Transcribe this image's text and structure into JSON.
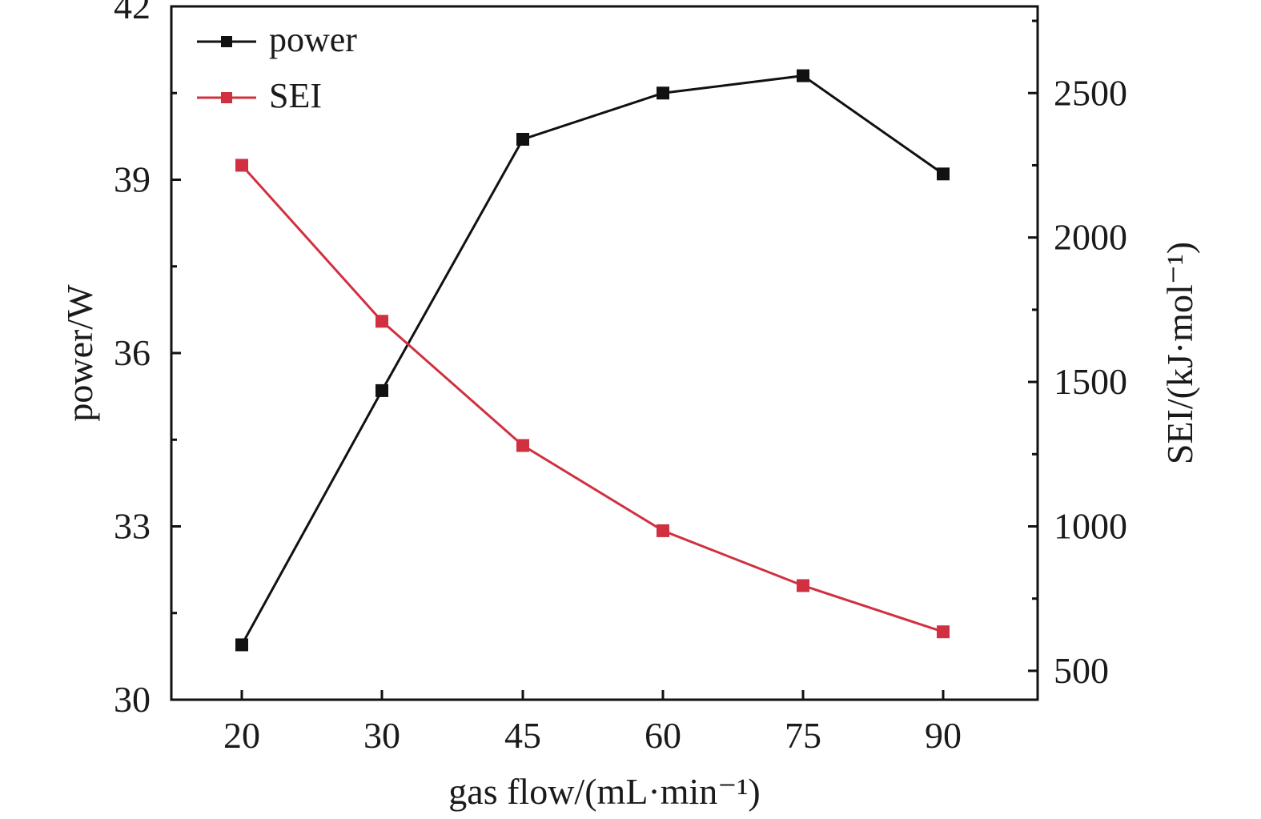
{
  "chart_data": {
    "type": "line",
    "categories": [
      "20",
      "30",
      "45",
      "60",
      "75",
      "90"
    ],
    "xlabel": "gas flow/(mL·min⁻¹)",
    "ylabel": "power/W",
    "y2label": "SEI/(kJ·mol⁻¹)",
    "ylim": [
      30,
      42
    ],
    "y_ticks": [
      "30",
      "33",
      "36",
      "39",
      "42"
    ],
    "y2lim": [
      400,
      2800
    ],
    "y2_ticks": [
      "500",
      "1000",
      "1500",
      "2000",
      "2500"
    ],
    "grid": false,
    "legend_position": "top-left",
    "series": [
      {
        "name": "power",
        "axis": "left",
        "color": "#111111",
        "values": [
          30.95,
          35.35,
          39.7,
          40.5,
          40.8,
          39.1
        ]
      },
      {
        "name": "SEI",
        "axis": "right",
        "color": "#d0303f",
        "values": [
          2250,
          1710,
          1280,
          985,
          795,
          635
        ]
      }
    ]
  }
}
